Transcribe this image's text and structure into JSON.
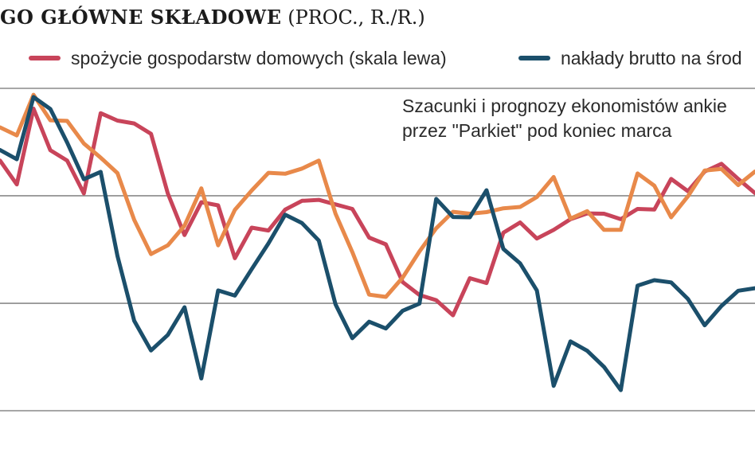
{
  "title": {
    "main": "GO GŁÓWNE SKŁADOWE",
    "unit": "(PROC., R./R.)"
  },
  "legend": [
    {
      "label": "spożycie gospodarstw domowych (skala lewa)",
      "color": "#c8445a",
      "series": "consumption"
    },
    {
      "label": "nakłady brutto na środ",
      "color": "#1b4f6b",
      "series": "investment"
    }
  ],
  "note": {
    "line1": "Szacunki i prognozy ekonomistów ankie",
    "line2": "przez \"Parkiet\" pod koniec marca"
  },
  "chart_data": {
    "type": "line",
    "x": [
      0,
      1,
      2,
      3,
      4,
      5,
      6,
      7,
      8,
      9,
      10,
      11,
      12,
      13,
      14,
      15,
      16,
      17,
      18,
      19,
      20,
      21,
      22,
      23,
      24,
      25,
      26,
      27,
      28,
      29,
      30,
      31,
      32,
      33,
      34,
      35,
      36,
      37,
      38,
      39,
      40,
      41,
      42,
      43,
      44,
      45
    ],
    "ylim": [
      0,
      1
    ],
    "gridlines": [
      0.0,
      0.3333,
      0.6667,
      1.0
    ],
    "grid": true,
    "series": [
      {
        "key": "consumption",
        "color": "#c8445a",
        "values": [
          0.776,
          0.702,
          0.937,
          0.808,
          0.776,
          0.674,
          0.923,
          0.9,
          0.891,
          0.859,
          0.674,
          0.545,
          0.647,
          0.637,
          0.473,
          0.568,
          0.559,
          0.624,
          0.651,
          0.654,
          0.64,
          0.626,
          0.537,
          0.516,
          0.399,
          0.359,
          0.343,
          0.296,
          0.411,
          0.396,
          0.552,
          0.584,
          0.534,
          0.561,
          0.594,
          0.612,
          0.611,
          0.594,
          0.626,
          0.624,
          0.719,
          0.681,
          0.742,
          0.766,
          0.719,
          0.675
        ]
      },
      {
        "key": "orange",
        "color": "#e8894a",
        "values": [
          0.879,
          0.854,
          0.98,
          0.901,
          0.899,
          0.829,
          0.785,
          0.737,
          0.592,
          0.486,
          0.513,
          0.574,
          0.69,
          0.513,
          0.623,
          0.683,
          0.738,
          0.735,
          0.751,
          0.776,
          0.611,
          0.492,
          0.36,
          0.353,
          0.413,
          0.494,
          0.566,
          0.617,
          0.611,
          0.616,
          0.628,
          0.632,
          0.663,
          0.725,
          0.596,
          0.619,
          0.561,
          0.561,
          0.736,
          0.698,
          0.6,
          0.665,
          0.745,
          0.75,
          0.7,
          0.742
        ]
      },
      {
        "key": "investment",
        "color": "#1b4f6b",
        "values": [
          0.809,
          0.78,
          0.973,
          0.936,
          0.832,
          0.718,
          0.741,
          0.48,
          0.279,
          0.187,
          0.235,
          0.321,
          0.1,
          0.373,
          0.357,
          0.439,
          0.519,
          0.608,
          0.582,
          0.528,
          0.33,
          0.225,
          0.276,
          0.255,
          0.31,
          0.332,
          0.657,
          0.601,
          0.6,
          0.684,
          0.502,
          0.457,
          0.373,
          0.077,
          0.215,
          0.186,
          0.136,
          0.064,
          0.388,
          0.405,
          0.398,
          0.347,
          0.265,
          0.325,
          0.372,
          0.38
        ]
      }
    ]
  }
}
